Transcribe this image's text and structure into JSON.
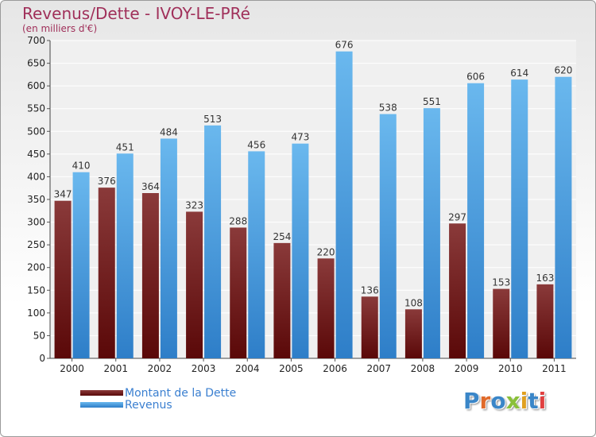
{
  "title": "Revenus/Dette - IVOY-LE-PRé",
  "subtitle": "(en milliers d'€)",
  "logo": {
    "text": "Proxiti",
    "colors": [
      "#3a86c8",
      "#e06a2a",
      "#3a86c8",
      "#8ac03a",
      "#e0a020",
      "#3a86c8",
      "#e04040"
    ]
  },
  "colors": {
    "dette_top": "#8a3a3a",
    "dette_bottom": "#5a0808",
    "revenus_top": "#6ab8ee",
    "revenus_bottom": "#2e7ec8"
  },
  "chart_data": {
    "type": "bar",
    "title": "Revenus/Dette - IVOY-LE-PRé",
    "subtitle": "(en milliers d'€)",
    "categories": [
      "2000",
      "2001",
      "2002",
      "2003",
      "2004",
      "2005",
      "2006",
      "2007",
      "2008",
      "2009",
      "2010",
      "2011"
    ],
    "series": [
      {
        "name": "Montant de la Dette",
        "values": [
          347,
          376,
          364,
          323,
          288,
          254,
          220,
          136,
          108,
          297,
          153,
          163
        ]
      },
      {
        "name": "Revenus",
        "values": [
          410,
          451,
          484,
          513,
          456,
          473,
          676,
          538,
          551,
          606,
          614,
          620
        ]
      }
    ],
    "yticks": [
      0,
      50,
      100,
      150,
      200,
      250,
      300,
      350,
      400,
      450,
      500,
      550,
      600,
      650,
      700
    ],
    "ylim": [
      0,
      700
    ],
    "grid": true,
    "legend": "bottom-left"
  }
}
